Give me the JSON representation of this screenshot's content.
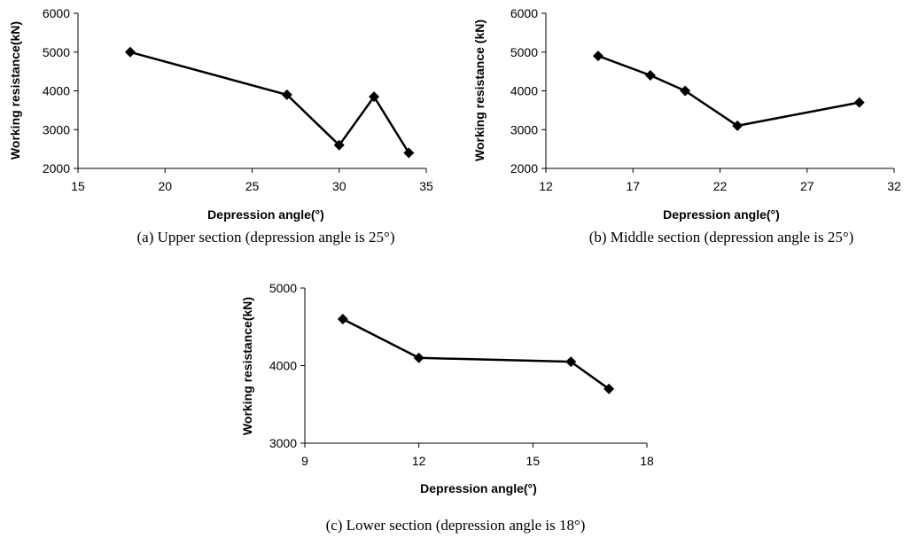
{
  "chart_data": [
    {
      "type": "line",
      "xlabel": "Depression angle(°)",
      "ylabel": "Working resistance(kN)",
      "caption": "(a) Upper section (depression angle is 25°)",
      "xlim": [
        15,
        35
      ],
      "ylim": [
        2000,
        6000
      ],
      "xticks": [
        15,
        20,
        25,
        30,
        35
      ],
      "yticks": [
        2000,
        3000,
        4000,
        5000,
        6000
      ],
      "x": [
        18,
        27,
        30,
        32,
        34
      ],
      "y": [
        5000,
        3900,
        2600,
        3850,
        2400
      ]
    },
    {
      "type": "line",
      "xlabel": "Depression angle(°)",
      "ylabel": "Working resistance (kN)",
      "caption": "(b) Middle section (depression angle is 25°)",
      "xlim": [
        12,
        32
      ],
      "ylim": [
        2000,
        6000
      ],
      "xticks": [
        12,
        17,
        22,
        27,
        32
      ],
      "yticks": [
        2000,
        3000,
        4000,
        5000,
        6000
      ],
      "x": [
        15,
        18,
        20,
        23,
        30
      ],
      "y": [
        4900,
        4400,
        4000,
        3100,
        3700
      ]
    },
    {
      "type": "line",
      "xlabel": "Depression angle(°)",
      "ylabel": "Working resistance(kN)",
      "caption": "(c) Lower section (depression angle is 18°)",
      "xlim": [
        9,
        18
      ],
      "ylim": [
        3000,
        5000
      ],
      "xticks": [
        9,
        12,
        15,
        18
      ],
      "yticks": [
        3000,
        4000,
        5000
      ],
      "x": [
        10,
        12,
        16,
        17
      ],
      "y": [
        4600,
        4100,
        4050,
        3700
      ]
    }
  ]
}
